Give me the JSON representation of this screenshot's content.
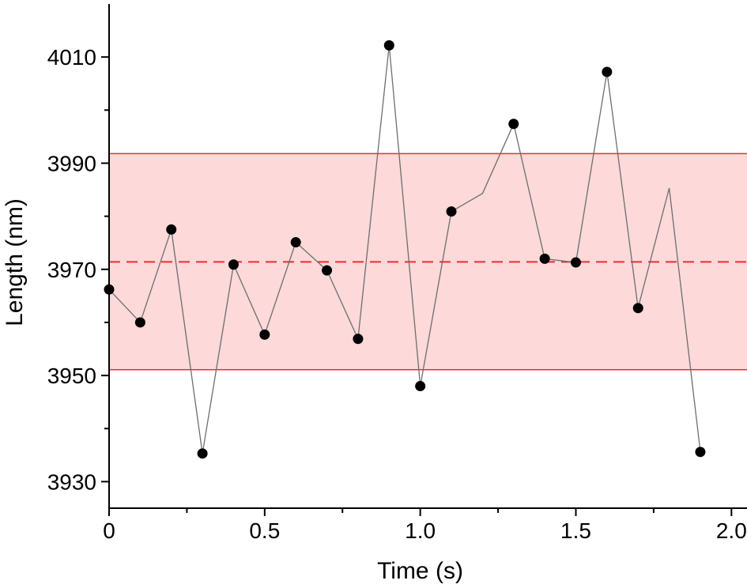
{
  "chart_data": {
    "type": "scatter",
    "xlabel": "Time (s)",
    "ylabel": "Length (nm)",
    "xlim": [
      0,
      2.05
    ],
    "ylim": [
      3925,
      4020
    ],
    "x_ticks": [
      {
        "value": 0,
        "label": "0"
      },
      {
        "value": 0.5,
        "label": "0.5"
      },
      {
        "value": 1.0,
        "label": "1.0"
      },
      {
        "value": 1.5,
        "label": "1.5"
      },
      {
        "value": 2.0,
        "label": "2.0"
      }
    ],
    "x_minor_ticks": [
      0.25,
      0.75,
      1.25,
      1.75
    ],
    "y_ticks": [
      {
        "value": 3930,
        "label": "3930"
      },
      {
        "value": 3950,
        "label": "3950"
      },
      {
        "value": 3970,
        "label": "3970"
      },
      {
        "value": 3990,
        "label": "3990"
      },
      {
        "value": 4010,
        "label": "4010"
      }
    ],
    "y_minor_ticks": [
      3940,
      3960,
      3980,
      4000
    ],
    "series": [
      {
        "color": "#000000",
        "line_color": "#6e6e6e",
        "points": [
          {
            "x": 0.0,
            "y": 3966.2,
            "marker": true
          },
          {
            "x": 0.1,
            "y": 3960.0,
            "marker": true
          },
          {
            "x": 0.2,
            "y": 3977.5,
            "marker": true
          },
          {
            "x": 0.3,
            "y": 3935.3,
            "marker": true
          },
          {
            "x": 0.4,
            "y": 3970.9,
            "marker": true
          },
          {
            "x": 0.5,
            "y": 3957.7,
            "marker": true
          },
          {
            "x": 0.6,
            "y": 3975.1,
            "marker": true
          },
          {
            "x": 0.7,
            "y": 3969.8,
            "marker": true
          },
          {
            "x": 0.8,
            "y": 3956.9,
            "marker": true
          },
          {
            "x": 0.9,
            "y": 4012.2,
            "marker": true
          },
          {
            "x": 1.0,
            "y": 3948.0,
            "marker": true
          },
          {
            "x": 1.1,
            "y": 3980.9,
            "marker": true
          },
          {
            "x": 1.2,
            "y": 3984.3,
            "marker": false
          },
          {
            "x": 1.3,
            "y": 3997.4,
            "marker": true
          },
          {
            "x": 1.4,
            "y": 3972.0,
            "marker": true
          },
          {
            "x": 1.5,
            "y": 3971.3,
            "marker": true
          },
          {
            "x": 1.6,
            "y": 4007.2,
            "marker": true
          },
          {
            "x": 1.7,
            "y": 3962.7,
            "marker": true
          },
          {
            "x": 1.8,
            "y": 3985.3,
            "marker": false
          },
          {
            "x": 1.9,
            "y": 3935.6,
            "marker": true
          }
        ]
      }
    ],
    "mean_line": {
      "y": 3971.4,
      "style": "dashed",
      "color": "#e53030"
    },
    "band": {
      "lower": 3951.1,
      "upper": 3991.8,
      "fill": "#fdd9d9",
      "edge_color": "#e53030"
    },
    "grid": false,
    "legend": "none"
  }
}
